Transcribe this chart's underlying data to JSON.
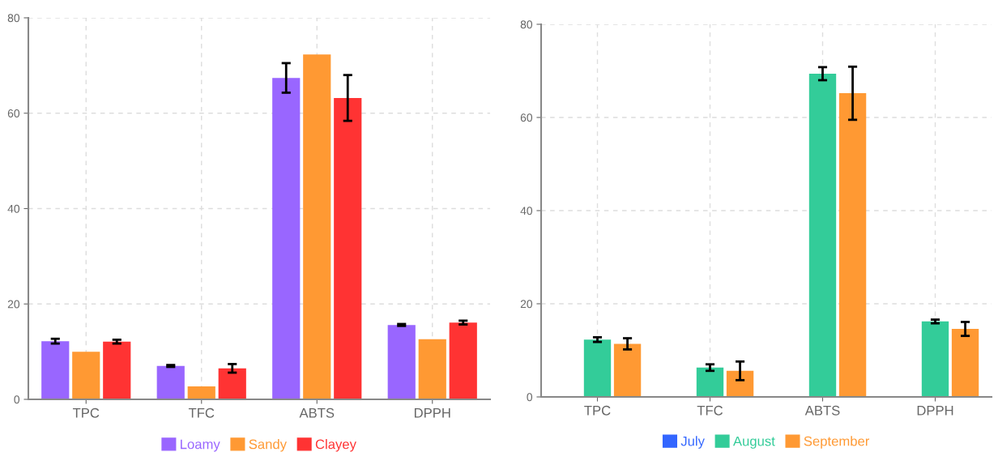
{
  "chart_data": [
    {
      "type": "bar",
      "categories": [
        "TPC",
        "TFC",
        "ABTS",
        "DPPH"
      ],
      "ylim": [
        0,
        80
      ],
      "yticks": [
        0,
        20,
        40,
        60,
        80
      ],
      "grid": true,
      "legend": "bottom",
      "series": [
        {
          "name": "Loamy",
          "color": "#9966ff",
          "values": [
            12.2,
            7.0,
            67.4,
            15.6
          ],
          "errors": [
            0.5,
            0.2,
            3.1,
            0.2
          ]
        },
        {
          "name": "Sandy",
          "color": "#ff9933",
          "values": [
            10.0,
            2.7,
            72.3,
            12.6
          ]
        },
        {
          "name": "Clayey",
          "color": "#ff3333",
          "values": [
            12.1,
            6.5,
            63.2,
            16.1
          ],
          "errors": [
            0.4,
            0.9,
            4.8,
            0.4
          ]
        }
      ]
    },
    {
      "type": "bar",
      "categories": [
        "TPC",
        "TFC",
        "ABTS",
        "DPPH"
      ],
      "ylim": [
        0,
        80
      ],
      "yticks": [
        0,
        20,
        40,
        60,
        80
      ],
      "grid": true,
      "legend": "bottom",
      "series": [
        {
          "name": "July",
          "color": "#3366ff",
          "values": [
            null,
            null,
            null,
            null
          ]
        },
        {
          "name": "August",
          "color": "#33cc99",
          "values": [
            12.3,
            6.3,
            69.4,
            16.2
          ],
          "errors": [
            0.5,
            0.7,
            1.4,
            0.4
          ]
        },
        {
          "name": "September",
          "color": "#ff9933",
          "values": [
            11.4,
            5.6,
            65.2,
            14.6
          ],
          "errors": [
            1.2,
            2.0,
            5.7,
            1.5
          ]
        }
      ]
    }
  ]
}
